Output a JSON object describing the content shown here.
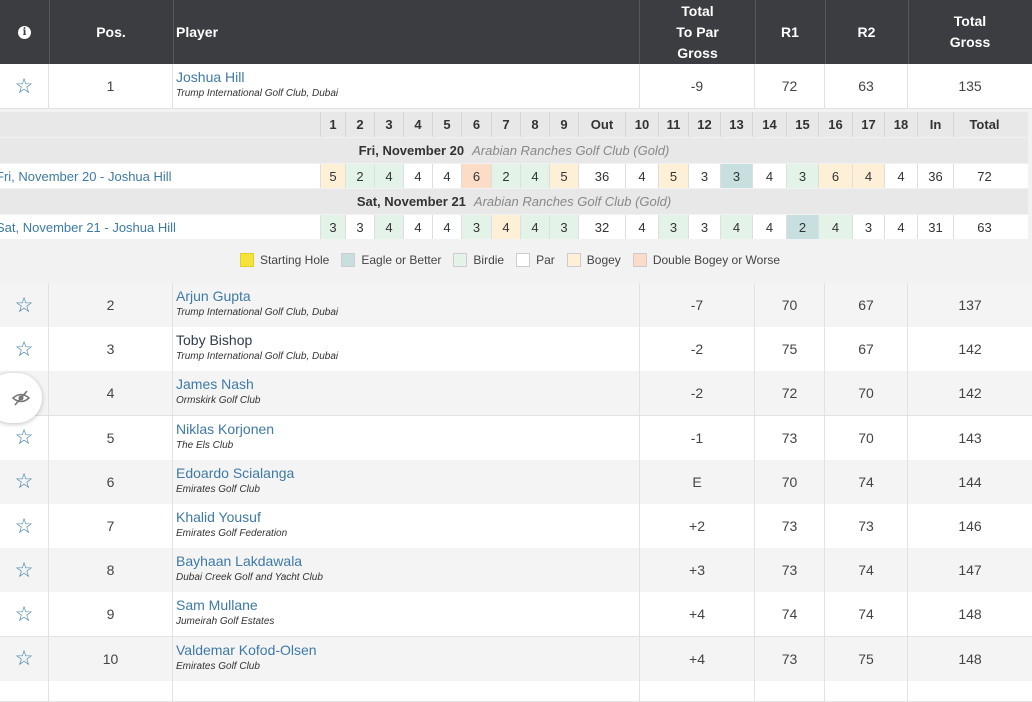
{
  "header": {
    "pos": "Pos.",
    "player": "Player",
    "topar_line1": "Total",
    "topar_line2": "To Par",
    "topar_line3": "Gross",
    "r1": "R1",
    "r2": "R2",
    "total_line1": "Total",
    "total_line2": "Gross"
  },
  "leader": {
    "pos": "1",
    "name": "Joshua Hill",
    "club": "Trump International Golf Club, Dubai",
    "topar": "-9",
    "r1": "72",
    "r2": "63",
    "total": "135"
  },
  "scorecard": {
    "holes": [
      "1",
      "2",
      "3",
      "4",
      "5",
      "6",
      "7",
      "8",
      "9",
      "Out",
      "10",
      "11",
      "12",
      "13",
      "14",
      "15",
      "16",
      "17",
      "18",
      "In",
      "Total"
    ],
    "round1": {
      "date": "Fri, November 20",
      "course": "Arabian Ranches Golf Club (Gold)",
      "label": "Fri, November 20 - Joshua Hill",
      "scores": [
        "5",
        "2",
        "4",
        "4",
        "4",
        "6",
        "2",
        "4",
        "5",
        "36",
        "4",
        "5",
        "3",
        "3",
        "4",
        "3",
        "6",
        "4",
        "4",
        "36",
        "72"
      ],
      "types": [
        "bogey",
        "birdie",
        "birdie",
        "par",
        "par",
        "double",
        "birdie",
        "birdie",
        "bogey",
        "",
        "par",
        "bogey",
        "par",
        "eagle",
        "par",
        "birdie",
        "bogey",
        "bogey",
        "par",
        "",
        ""
      ]
    },
    "round2": {
      "date": "Sat, November 21",
      "course": "Arabian Ranches Golf Club (Gold)",
      "label": "Sat, November 21 - Joshua Hill",
      "scores": [
        "3",
        "3",
        "4",
        "4",
        "4",
        "3",
        "4",
        "4",
        "3",
        "32",
        "4",
        "3",
        "3",
        "4",
        "4",
        "2",
        "4",
        "3",
        "4",
        "31",
        "63"
      ],
      "types": [
        "birdie",
        "par",
        "birdie",
        "par",
        "par",
        "birdie",
        "bogey",
        "birdie",
        "birdie",
        "",
        "par",
        "birdie",
        "par",
        "birdie",
        "par",
        "eagle",
        "birdie",
        "par",
        "par",
        "",
        ""
      ]
    }
  },
  "legend": {
    "starting": "Starting Hole",
    "eagle": "Eagle or Better",
    "birdie": "Birdie",
    "par": "Par",
    "bogey": "Bogey",
    "double": "Double Bogey or Worse"
  },
  "colors": {
    "header_bg": "#3b3d41",
    "link": "#3e7aa6",
    "starting": "#f5e33b",
    "eagle": "#c8dfe0",
    "birdie": "#e4f3e8",
    "bogey": "#fdf0d6",
    "double": "#fbdcc7"
  },
  "players": [
    {
      "pos": "2",
      "name": "Arjun Gupta",
      "club": "Trump International Golf Club, Dubai",
      "topar": "-7",
      "r1": "70",
      "r2": "67",
      "total": "137"
    },
    {
      "pos": "3",
      "name": "Toby Bishop",
      "club": "Trump International Golf Club, Dubai",
      "topar": "-2",
      "r1": "75",
      "r2": "67",
      "total": "142"
    },
    {
      "pos": "4",
      "name": "James Nash",
      "club": "Ormskirk Golf Club",
      "topar": "-2",
      "r1": "72",
      "r2": "70",
      "total": "142"
    },
    {
      "pos": "5",
      "name": "Niklas Korjonen",
      "club": "The Els Club",
      "topar": "-1",
      "r1": "73",
      "r2": "70",
      "total": "143"
    },
    {
      "pos": "6",
      "name": "Edoardo Scialanga",
      "club": "Emirates Golf Club",
      "topar": "E",
      "r1": "70",
      "r2": "74",
      "total": "144"
    },
    {
      "pos": "7",
      "name": "Khalid Yousuf",
      "club": "Emirates Golf Federation",
      "topar": "+2",
      "r1": "73",
      "r2": "73",
      "total": "146"
    },
    {
      "pos": "8",
      "name": "Bayhaan Lakdawala",
      "club": "Dubai Creek Golf and Yacht Club",
      "topar": "+3",
      "r1": "73",
      "r2": "74",
      "total": "147"
    },
    {
      "pos": "9",
      "name": "Sam Mullane",
      "club": "Jumeirah Golf Estates",
      "topar": "+4",
      "r1": "74",
      "r2": "74",
      "total": "148"
    },
    {
      "pos": "10",
      "name": "Valdemar Kofod-Olsen",
      "club": "Emirates Golf Club",
      "topar": "+4",
      "r1": "73",
      "r2": "75",
      "total": "148"
    }
  ]
}
